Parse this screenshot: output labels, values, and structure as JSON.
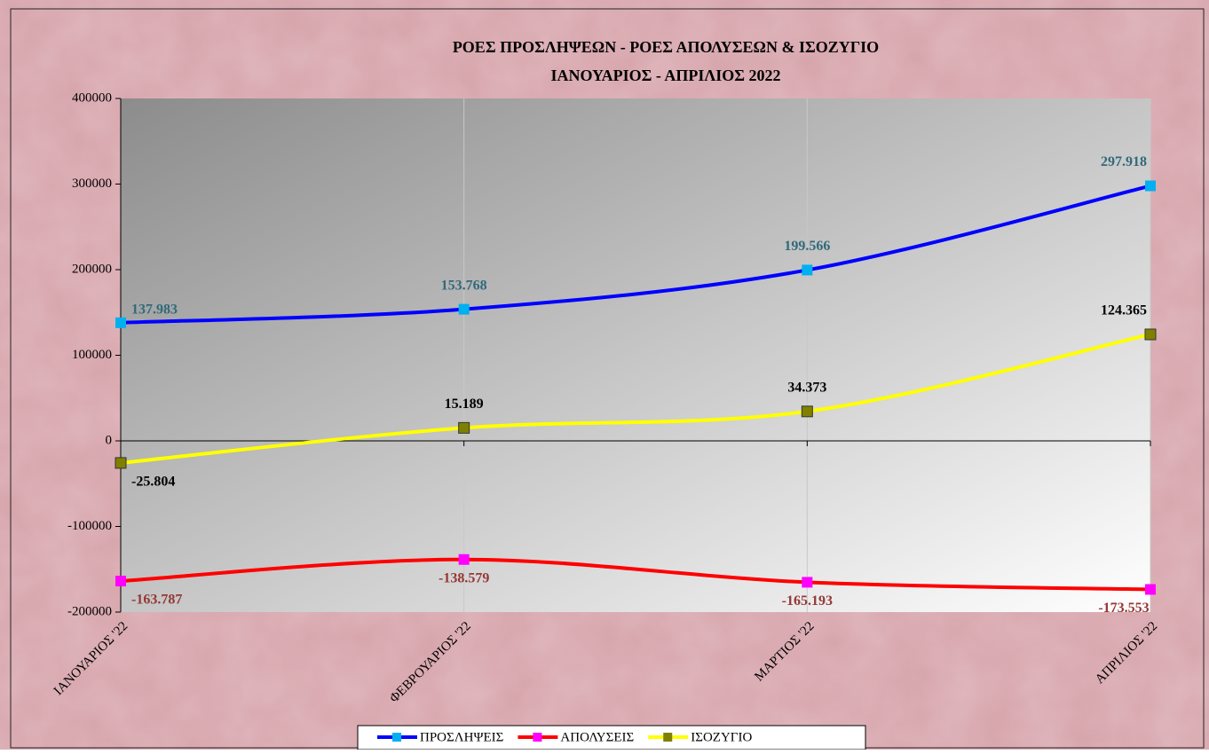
{
  "chart_data": {
    "type": "line",
    "title": "ΡΟΕΣ ΠΡΟΣΛΗΨΕΩΝ -  ΡΟΕΣ ΑΠΟΛΥΣΕΩΝ  & ΙΣΟΖΥΓΙΟ",
    "subtitle": "ΙΑΝΟΥΑΡΙΟΣ  -  ΑΠΡΙΛΙΟΣ  2022",
    "categories": [
      "ΙΑΝΟΥΑΡΙΟΣ '22",
      "ΦΕΒΡΟΥΑΡΙΟΣ '22",
      "ΜΑΡΤΙΟΣ '22",
      "ΑΠΡΙΛΙΟΣ '22"
    ],
    "series": [
      {
        "name": "ΠΡΟΣΛΗΨΕΙΣ",
        "color": "#0000ff",
        "marker_color": "#00b0f0",
        "label_color": "#31697a",
        "values": [
          137983,
          153768,
          199566,
          297918
        ],
        "value_labels": [
          "137.983",
          "153.768",
          "199.566",
          "297.918"
        ]
      },
      {
        "name": "ΑΠΟΛΥΣΕΙΣ",
        "color": "#ff0000",
        "marker_color": "#ff00ff",
        "label_color": "#953735",
        "values": [
          -163787,
          -138579,
          -165193,
          -173553
        ],
        "value_labels": [
          "-163.787",
          "-138.579",
          "-165.193",
          "-173.553"
        ]
      },
      {
        "name": "ΙΣΟΖΥΓΙΟ",
        "color": "#ffff00",
        "marker_color": "#808000",
        "label_color": "#000000",
        "values": [
          -25804,
          15189,
          34373,
          124365
        ],
        "value_labels": [
          "-25.804",
          "15.189",
          "34.373",
          "124.365"
        ]
      }
    ],
    "ylim": [
      -200000,
      400000
    ],
    "yticks": [
      -200000,
      -100000,
      0,
      100000,
      200000,
      300000,
      400000
    ],
    "legend": "bottom",
    "smooth": true
  }
}
